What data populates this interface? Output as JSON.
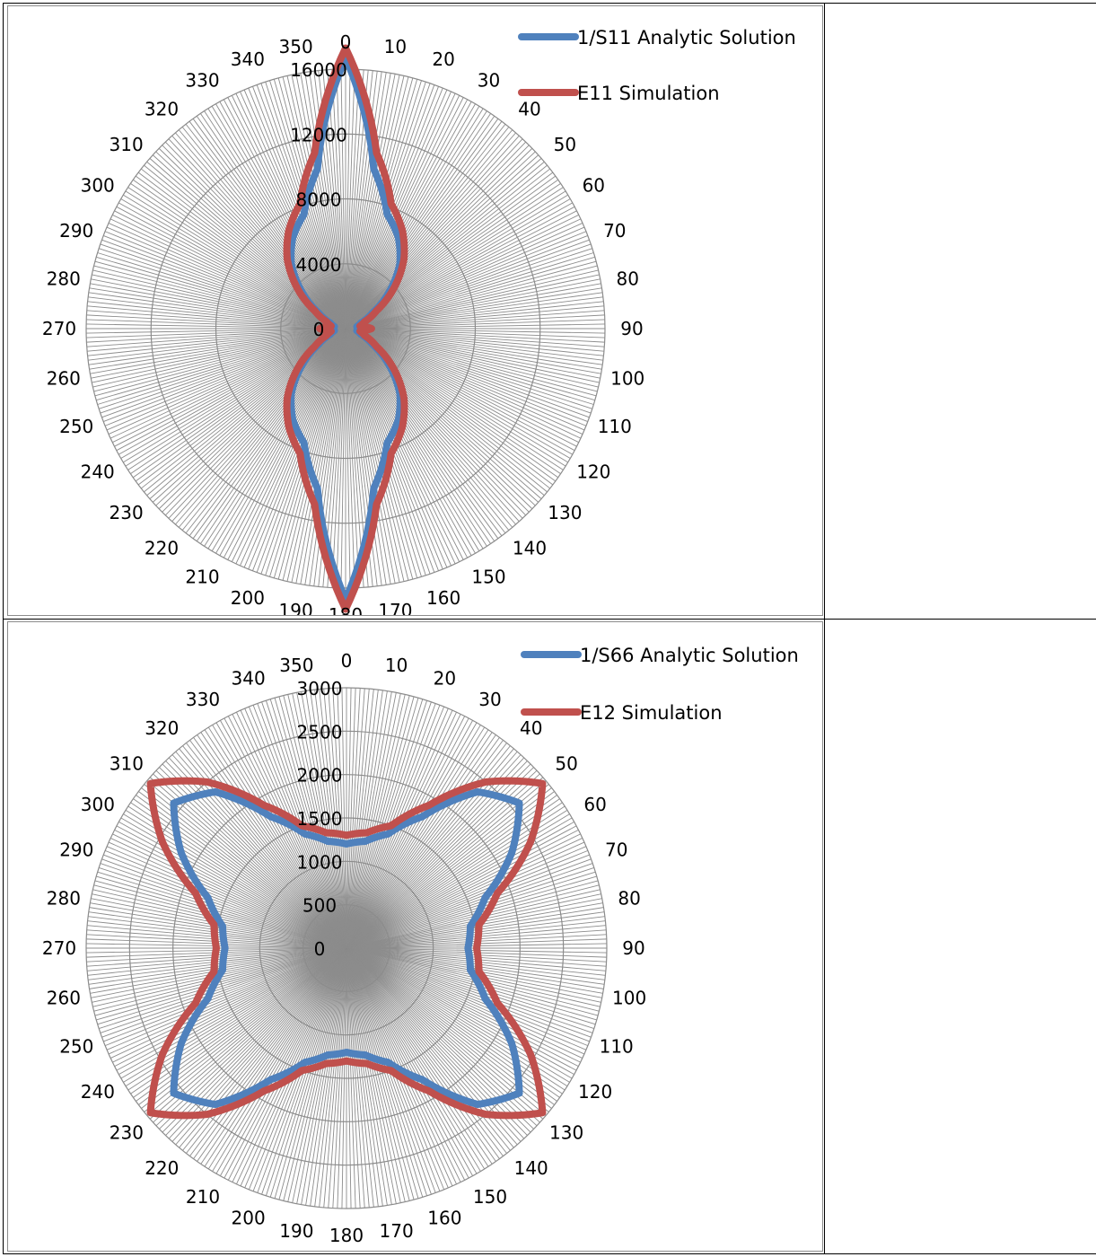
{
  "chart_data": [
    {
      "type": "radar",
      "title": "",
      "angles_deg": [
        0,
        10,
        20,
        30,
        40,
        50,
        60,
        70,
        80,
        90,
        100,
        110,
        120,
        130,
        140,
        150,
        160,
        170,
        180,
        190,
        200,
        210,
        220,
        230,
        240,
        250,
        260,
        270,
        280,
        290,
        300,
        310,
        320,
        330,
        340,
        350
      ],
      "radial_ticks": [
        0,
        4000,
        8000,
        12000,
        16000
      ],
      "rlim": [
        0,
        16000
      ],
      "grid": true,
      "legend_position": "top-right",
      "series": [
        {
          "name": "1/S11 Analytic Solution",
          "color": "#4f81bd",
          "values_by_angle": [
            [
              0,
              16700
            ],
            [
              10,
              10000
            ],
            [
              20,
              7500
            ],
            [
              30,
              6500
            ],
            [
              40,
              5200
            ],
            [
              50,
              3500
            ],
            [
              60,
              1900
            ],
            [
              70,
              1000
            ],
            [
              80,
              700
            ],
            [
              90,
              1400
            ],
            [
              100,
              700
            ],
            [
              110,
              1000
            ],
            [
              120,
              1900
            ],
            [
              130,
              3500
            ],
            [
              140,
              5200
            ],
            [
              150,
              6500
            ],
            [
              160,
              7500
            ],
            [
              170,
              10000
            ],
            [
              180,
              16700
            ],
            [
              190,
              10000
            ],
            [
              200,
              7500
            ],
            [
              210,
              6500
            ],
            [
              220,
              5200
            ],
            [
              230,
              3500
            ],
            [
              240,
              1900
            ],
            [
              250,
              1000
            ],
            [
              260,
              700
            ],
            [
              270,
              1400
            ],
            [
              280,
              700
            ],
            [
              290,
              1000
            ],
            [
              300,
              1900
            ],
            [
              310,
              3500
            ],
            [
              320,
              5200
            ],
            [
              330,
              6500
            ],
            [
              340,
              7500
            ],
            [
              350,
              10000
            ]
          ]
        },
        {
          "name": "E11 Simulation",
          "color": "#c0504d",
          "values_by_angle": [
            [
              0,
              17300
            ],
            [
              10,
              11000
            ],
            [
              20,
              8200
            ],
            [
              30,
              7000
            ],
            [
              40,
              5600
            ],
            [
              50,
              3900
            ],
            [
              60,
              2200
            ],
            [
              70,
              1250
            ],
            [
              80,
              900
            ],
            [
              90,
              1600
            ],
            [
              100,
              900
            ],
            [
              110,
              1250
            ],
            [
              120,
              2200
            ],
            [
              130,
              3900
            ],
            [
              140,
              5600
            ],
            [
              150,
              7000
            ],
            [
              160,
              8200
            ],
            [
              170,
              11000
            ],
            [
              180,
              17300
            ],
            [
              190,
              11000
            ],
            [
              200,
              8200
            ],
            [
              210,
              7000
            ],
            [
              220,
              5600
            ],
            [
              230,
              3900
            ],
            [
              240,
              2200
            ],
            [
              250,
              1250
            ],
            [
              260,
              900
            ],
            [
              270,
              1600
            ],
            [
              280,
              900
            ],
            [
              290,
              1250
            ],
            [
              300,
              2200
            ],
            [
              310,
              3900
            ],
            [
              320,
              5600
            ],
            [
              330,
              7000
            ],
            [
              340,
              8200
            ],
            [
              350,
              11000
            ]
          ]
        }
      ]
    },
    {
      "type": "radar",
      "title": "",
      "angles_deg": [
        0,
        10,
        20,
        30,
        40,
        50,
        60,
        70,
        80,
        90,
        100,
        110,
        120,
        130,
        140,
        150,
        160,
        170,
        180,
        190,
        200,
        210,
        220,
        230,
        240,
        250,
        260,
        270,
        280,
        290,
        300,
        310,
        320,
        330,
        340,
        350
      ],
      "radial_ticks": [
        0,
        500,
        1000,
        1500,
        2000,
        2500,
        3000
      ],
      "rlim": [
        0,
        3000
      ],
      "grid": true,
      "legend_position": "top-right",
      "series": [
        {
          "name": "1/S66 Analytic Solution",
          "color": "#4f81bd",
          "values_by_angle": [
            [
              0,
              1200
            ],
            [
              10,
              1250
            ],
            [
              20,
              1400
            ],
            [
              30,
              1750
            ],
            [
              40,
              2350
            ],
            [
              50,
              2600
            ],
            [
              60,
              2200
            ],
            [
              70,
              1700
            ],
            [
              80,
              1450
            ],
            [
              90,
              1400
            ],
            [
              100,
              1450
            ],
            [
              110,
              1700
            ],
            [
              120,
              2200
            ],
            [
              130,
              2600
            ],
            [
              140,
              2350
            ],
            [
              150,
              1750
            ],
            [
              160,
              1400
            ],
            [
              170,
              1250
            ],
            [
              180,
              1200
            ],
            [
              190,
              1250
            ],
            [
              200,
              1400
            ],
            [
              210,
              1750
            ],
            [
              220,
              2350
            ],
            [
              230,
              2600
            ],
            [
              240,
              2200
            ],
            [
              250,
              1700
            ],
            [
              260,
              1450
            ],
            [
              270,
              1400
            ],
            [
              280,
              1450
            ],
            [
              290,
              1700
            ],
            [
              300,
              2200
            ],
            [
              310,
              2600
            ],
            [
              320,
              2350
            ],
            [
              330,
              1750
            ],
            [
              340,
              1400
            ],
            [
              350,
              1250
            ]
          ]
        },
        {
          "name": "E12 Simulation",
          "color": "#c0504d",
          "values_by_angle": [
            [
              0,
              1300
            ],
            [
              10,
              1350
            ],
            [
              20,
              1500
            ],
            [
              30,
              1900
            ],
            [
              40,
              2500
            ],
            [
              50,
              2950
            ],
            [
              60,
              2450
            ],
            [
              70,
              1850
            ],
            [
              80,
              1550
            ],
            [
              90,
              1500
            ],
            [
              100,
              1550
            ],
            [
              110,
              1850
            ],
            [
              120,
              2450
            ],
            [
              130,
              2950
            ],
            [
              140,
              2500
            ],
            [
              150,
              1900
            ],
            [
              160,
              1500
            ],
            [
              170,
              1350
            ],
            [
              180,
              1300
            ],
            [
              190,
              1350
            ],
            [
              200,
              1500
            ],
            [
              210,
              1900
            ],
            [
              220,
              2500
            ],
            [
              230,
              2950
            ],
            [
              240,
              2450
            ],
            [
              250,
              1850
            ],
            [
              260,
              1550
            ],
            [
              270,
              1500
            ],
            [
              280,
              1550
            ],
            [
              290,
              1850
            ],
            [
              300,
              2450
            ],
            [
              310,
              2950
            ],
            [
              320,
              2500
            ],
            [
              330,
              1900
            ],
            [
              340,
              1500
            ],
            [
              350,
              1350
            ]
          ]
        }
      ]
    }
  ]
}
